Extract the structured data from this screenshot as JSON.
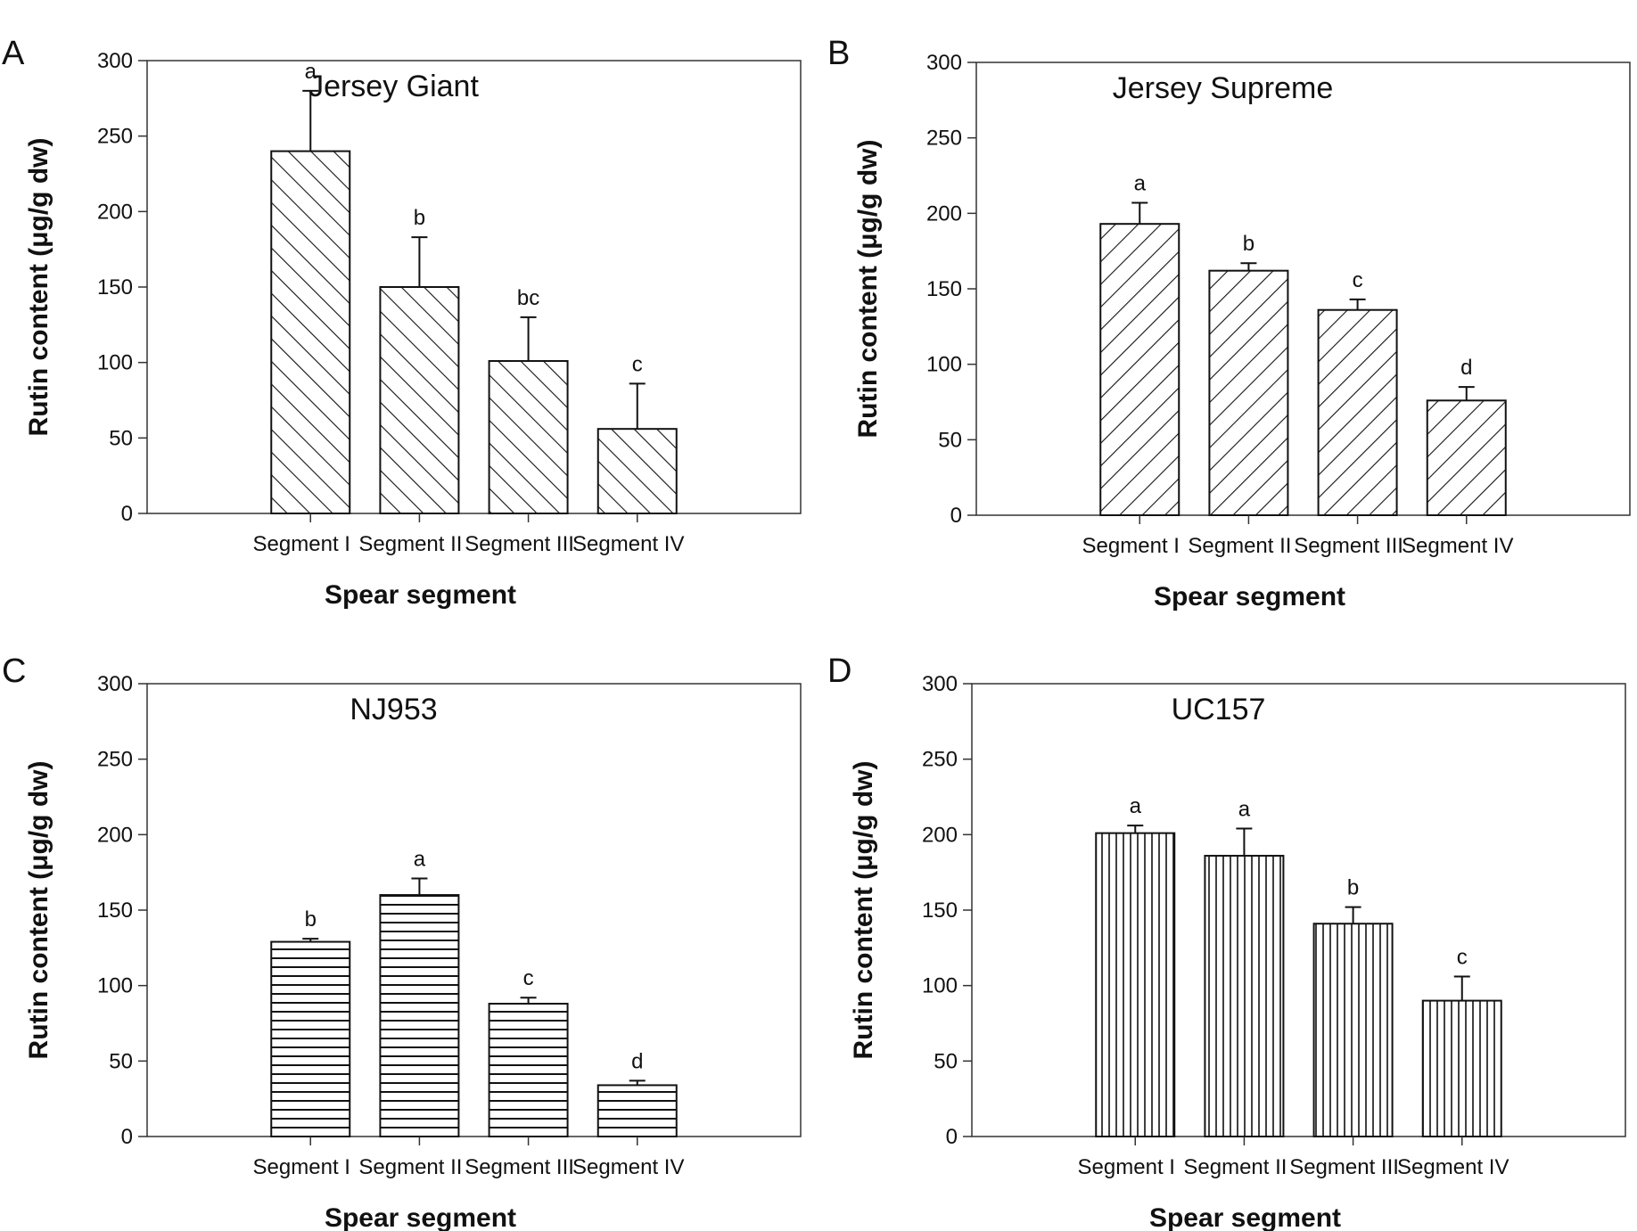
{
  "chart_data": [
    {
      "panel": "A",
      "type": "bar",
      "title": "Jersey Giant",
      "categories": [
        "Segment I",
        "Segment II",
        "Segment III",
        "Segment IV"
      ],
      "values": [
        240,
        150,
        101,
        56
      ],
      "errors": [
        40,
        33,
        29,
        30
      ],
      "significance": [
        "a",
        "b",
        "bc",
        "c"
      ],
      "xlabel": "Spear segment",
      "ylabel": "Rutin content (μg/g dw)",
      "ylim": [
        0,
        300
      ],
      "yticks": [
        0,
        50,
        100,
        150,
        200,
        250,
        300
      ],
      "pattern": "hatch-backslash"
    },
    {
      "panel": "B",
      "type": "bar",
      "title": "Jersey Supreme",
      "categories": [
        "Segment I",
        "Segment II",
        "Segment III",
        "Segment IV"
      ],
      "values": [
        193,
        162,
        136,
        76
      ],
      "errors": [
        14,
        5,
        7,
        9
      ],
      "significance": [
        "a",
        "b",
        "c",
        "d"
      ],
      "xlabel": "Spear segment",
      "ylabel": "Rutin content (μg/g dw)",
      "ylim": [
        0,
        300
      ],
      "yticks": [
        0,
        50,
        100,
        150,
        200,
        250,
        300
      ],
      "pattern": "hatch-slash"
    },
    {
      "panel": "C",
      "type": "bar",
      "title": "NJ953",
      "categories": [
        "Segment I",
        "Segment II",
        "Segment III",
        "Segment IV"
      ],
      "values": [
        129,
        160,
        88,
        34
      ],
      "errors": [
        2,
        11,
        4,
        3
      ],
      "significance": [
        "b",
        "a",
        "c",
        "d"
      ],
      "xlabel": "Spear segment",
      "ylabel": "Rutin content (μg/g dw)",
      "ylim": [
        0,
        300
      ],
      "yticks": [
        0,
        50,
        100,
        150,
        200,
        250,
        300
      ],
      "pattern": "hatch-horizontal"
    },
    {
      "panel": "D",
      "type": "bar",
      "title": "UC157",
      "categories": [
        "Segment I",
        "Segment II",
        "Segment III",
        "Segment IV"
      ],
      "values": [
        201,
        186,
        141,
        90
      ],
      "errors": [
        5,
        18,
        11,
        16
      ],
      "significance": [
        "a",
        "a",
        "b",
        "c"
      ],
      "xlabel": "Spear segment",
      "ylabel": "Rutin content (μg/g dw)",
      "ylim": [
        0,
        300
      ],
      "yticks": [
        0,
        50,
        100,
        150,
        200,
        250,
        300
      ],
      "pattern": "hatch-vertical"
    }
  ]
}
